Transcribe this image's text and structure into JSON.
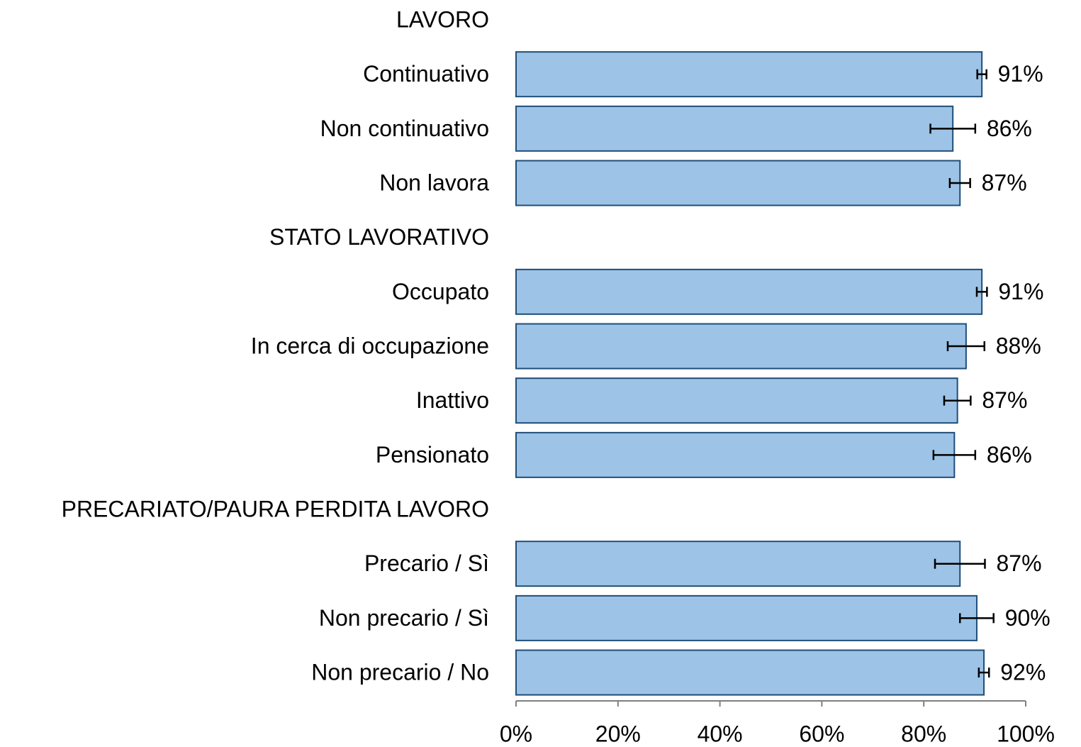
{
  "chart_data": {
    "type": "barh",
    "categories": [
      "LAVORO",
      "Continuativo",
      "Non continuativo",
      "Non lavora",
      "STATO LAVORATIVO",
      "Occupato",
      "In cerca di occupazione",
      "Inattivo",
      "Pensionato",
      "PRECARIATO/PAURA PERDITA LAVORO",
      "Precario / Sì",
      "Non precario / Sì",
      "Non precario / No"
    ],
    "values": [
      null,
      91.4,
      85.7,
      87.1,
      null,
      91.4,
      88.3,
      86.6,
      86.0,
      null,
      87.1,
      90.4,
      91.8
    ],
    "errors": [
      null,
      0.9,
      4.4,
      2.0,
      null,
      1.0,
      3.6,
      2.6,
      4.1,
      null,
      4.9,
      3.3,
      1.0
    ],
    "value_labels": [
      null,
      "91%",
      "86%",
      "87%",
      null,
      "91%",
      "88%",
      "87%",
      "86%",
      null,
      "87%",
      "90%",
      "92%"
    ],
    "color": "#9dc3e6",
    "xlim": [
      0,
      100
    ],
    "xticks": [
      {
        "value": 0,
        "label": "0%"
      },
      {
        "value": 20,
        "label": "20%"
      },
      {
        "value": 40,
        "label": "40%"
      },
      {
        "value": 60,
        "label": "60%"
      },
      {
        "value": 80,
        "label": "80%"
      },
      {
        "value": 100,
        "label": "100%"
      }
    ]
  }
}
